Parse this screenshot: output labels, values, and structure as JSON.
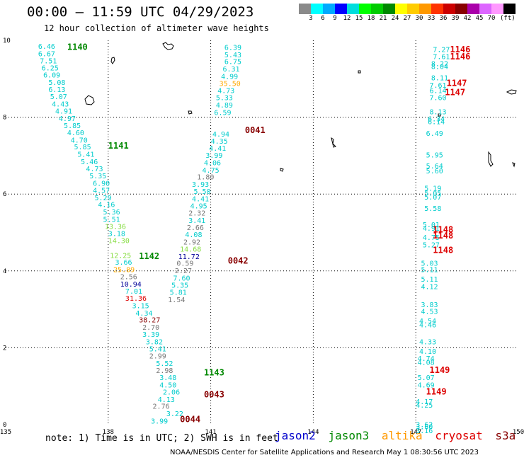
{
  "title": "00:00 – 11:59 UTC 04/29/2023",
  "subtitle": "12 hour collection of altimeter wave heights",
  "colorbar": {
    "colors": [
      "#8a8a8a",
      "#00ffff",
      "#00aaff",
      "#0000ff",
      "#00dddd",
      "#00ff00",
      "#00cc00",
      "#008800",
      "#ffff00",
      "#ffcc00",
      "#ff9900",
      "#ff3300",
      "#cc0000",
      "#880000",
      "#aa00aa",
      "#dd66ff",
      "#ff99ff",
      "#000000"
    ],
    "tick_values": [
      "3",
      "6",
      "9",
      "12",
      "15",
      "18",
      "21",
      "24",
      "27",
      "30",
      "33",
      "36",
      "39",
      "42",
      "45",
      "70"
    ],
    "unit": "(ft)"
  },
  "map": {
    "x_ticks": [
      "135",
      "138",
      "141",
      "144",
      "147",
      "150"
    ],
    "y_ticks": [
      "10",
      "8",
      "6",
      "4",
      "2",
      "0"
    ],
    "lon_range": [
      135,
      150
    ],
    "lat_range": [
      0,
      10
    ],
    "satellites": {
      "jason2": "#0000cc",
      "jason3": "#008800",
      "altika": "#ff9900",
      "cryosat": "#dd0000",
      "s3a": "#880000"
    },
    "labels": [
      {
        "text": "1140",
        "lon": 136.8,
        "lat": 9.75,
        "sat": "jason3"
      },
      {
        "text": "1141",
        "lon": 138.0,
        "lat": 7.18,
        "sat": "jason3"
      },
      {
        "text": "1142",
        "lon": 138.9,
        "lat": 4.31,
        "sat": "jason3"
      },
      {
        "text": "1143",
        "lon": 140.8,
        "lat": 1.28,
        "sat": "jason3"
      },
      {
        "text": "0041",
        "lon": 142.0,
        "lat": 7.59,
        "sat": "s3a"
      },
      {
        "text": "0042",
        "lon": 141.5,
        "lat": 4.19,
        "sat": "s3a"
      },
      {
        "text": "0043",
        "lon": 140.8,
        "lat": 0.71,
        "sat": "s3a"
      },
      {
        "text": "0044",
        "lon": 140.1,
        "lat": 0.06,
        "sat": "s3a"
      },
      {
        "text": "1146",
        "lon": 148.0,
        "lat": 9.69,
        "sat": "cryosat"
      },
      {
        "text": "1146",
        "lon": 148.0,
        "lat": 9.5,
        "sat": "cryosat"
      },
      {
        "text": "1147",
        "lon": 147.9,
        "lat": 8.81,
        "sat": "cryosat"
      },
      {
        "text": "1147",
        "lon": 147.85,
        "lat": 8.57,
        "sat": "cryosat"
      },
      {
        "text": "1148",
        "lon": 147.5,
        "lat": 5.0,
        "sat": "cryosat"
      },
      {
        "text": "1148",
        "lon": 147.5,
        "lat": 4.84,
        "sat": "cryosat"
      },
      {
        "text": "1148",
        "lon": 147.5,
        "lat": 4.47,
        "sat": "cryosat"
      },
      {
        "text": "1149",
        "lon": 147.4,
        "lat": 1.34,
        "sat": "cryosat"
      },
      {
        "text": "1149",
        "lon": 147.3,
        "lat": 0.78,
        "sat": "cryosat"
      }
    ],
    "tracks": [
      {
        "values": [
          [
            "6.46",
            135.95,
            9.78,
            "#00cccc"
          ],
          [
            "6.67",
            135.95,
            9.59,
            "#00cccc"
          ],
          [
            "7.51",
            136.0,
            9.4,
            "#00cccc"
          ],
          [
            "6.25",
            136.05,
            9.22,
            "#00cccc"
          ],
          [
            "6.09",
            136.1,
            9.03,
            "#00cccc"
          ],
          [
            "5.08",
            136.25,
            8.84,
            "#00cccc"
          ],
          [
            "6.13",
            136.25,
            8.66,
            "#00cccc"
          ],
          [
            "5.07",
            136.3,
            8.47,
            "#00cccc"
          ],
          [
            "4.43",
            136.35,
            8.28,
            "#00cccc"
          ],
          [
            "4.91",
            136.45,
            8.09,
            "#00cccc"
          ],
          [
            "4.97",
            136.55,
            7.9,
            "#00cccc"
          ],
          [
            "5.85",
            136.7,
            7.72,
            "#00cccc"
          ],
          [
            "4.60",
            136.8,
            7.53,
            "#00cccc"
          ],
          [
            "4.70",
            136.9,
            7.34,
            "#00cccc"
          ],
          [
            "5.85",
            137.0,
            7.16,
            "#00cccc"
          ],
          [
            "5.41",
            137.1,
            6.97,
            "#00cccc"
          ],
          [
            "5.46",
            137.2,
            6.78,
            "#00cccc"
          ],
          [
            "4.73",
            137.35,
            6.59,
            "#00cccc"
          ],
          [
            "5.35",
            137.45,
            6.41,
            "#00cccc"
          ],
          [
            "6.90",
            137.55,
            6.22,
            "#00cccc"
          ],
          [
            "4.57",
            137.55,
            6.03,
            "#00cccc"
          ],
          [
            "5.29",
            137.6,
            5.84,
            "#00cccc"
          ],
          [
            "4.16",
            137.7,
            5.66,
            "#00cccc"
          ],
          [
            "5.36",
            137.85,
            5.47,
            "#00cccc"
          ],
          [
            "5.51",
            137.85,
            5.28,
            "#00cccc"
          ],
          [
            "13.36",
            137.9,
            5.09,
            "#88dd44"
          ],
          [
            "3.18",
            138.0,
            4.91,
            "#00cccc"
          ],
          [
            "14.30",
            138.0,
            4.72,
            "#88dd44"
          ],
          [
            "12.25",
            138.05,
            4.34,
            "#88dd44"
          ],
          [
            "3.66",
            138.2,
            4.16,
            "#00cccc"
          ],
          [
            "25.89",
            138.15,
            3.97,
            "#ffaa00"
          ],
          [
            "2.56",
            138.35,
            3.78,
            "#777777"
          ],
          [
            "10.94",
            138.35,
            3.59,
            "#000099"
          ],
          [
            "7.01",
            138.5,
            3.41,
            "#00cccc"
          ],
          [
            "31.36",
            138.5,
            3.22,
            "#dd0000"
          ],
          [
            "3.15",
            138.7,
            3.03,
            "#00cccc"
          ],
          [
            "4.34",
            138.8,
            2.84,
            "#00cccc"
          ],
          [
            "38.27",
            138.9,
            2.66,
            "#880000"
          ],
          [
            "2.70",
            139.0,
            2.47,
            "#777777"
          ],
          [
            "3.39",
            139.0,
            2.28,
            "#00cccc"
          ],
          [
            "3.82",
            139.1,
            2.09,
            "#00cccc"
          ],
          [
            "5.41",
            139.2,
            1.91,
            "#00cccc"
          ],
          [
            "2.99",
            139.2,
            1.72,
            "#777777"
          ],
          [
            "5.52",
            139.4,
            1.53,
            "#00cccc"
          ],
          [
            "2.98",
            139.4,
            1.34,
            "#777777"
          ],
          [
            "3.48",
            139.5,
            1.16,
            "#00cccc"
          ],
          [
            "4.50",
            139.5,
            0.97,
            "#00cccc"
          ],
          [
            "2.06",
            139.6,
            0.78,
            "#00cccc"
          ],
          [
            "4.13",
            139.45,
            0.59,
            "#00cccc"
          ],
          [
            "2.76",
            139.3,
            0.41,
            "#777777"
          ],
          [
            "3.22",
            139.7,
            0.22,
            "#00cccc"
          ],
          [
            "3.99",
            139.25,
            0.03,
            "#00cccc"
          ]
        ]
      },
      {
        "values": [
          [
            "6.39",
            141.4,
            9.75,
            "#00cccc"
          ],
          [
            "5.43",
            141.4,
            9.56,
            "#00cccc"
          ],
          [
            "6.75",
            141.4,
            9.38,
            "#00cccc"
          ],
          [
            "6.31",
            141.35,
            9.19,
            "#00cccc"
          ],
          [
            "4.99",
            141.3,
            9.0,
            "#00cccc"
          ],
          [
            "35.50",
            141.25,
            8.81,
            "#ffaa00"
          ],
          [
            "4.73",
            141.2,
            8.63,
            "#00cccc"
          ],
          [
            "5.33",
            141.15,
            8.44,
            "#00cccc"
          ],
          [
            "4.89",
            141.15,
            8.25,
            "#00cccc"
          ],
          [
            "6.59",
            141.1,
            8.06,
            "#00cccc"
          ],
          [
            "4.94",
            141.05,
            7.5,
            "#00cccc"
          ],
          [
            "4.35",
            141.0,
            7.31,
            "#00cccc"
          ],
          [
            "4.41",
            140.95,
            7.13,
            "#00cccc"
          ],
          [
            "3.99",
            140.85,
            6.94,
            "#00cccc"
          ],
          [
            "4.06",
            140.8,
            6.75,
            "#00cccc"
          ],
          [
            "4.75",
            140.75,
            6.56,
            "#00cccc"
          ],
          [
            "1.80",
            140.6,
            6.38,
            "#777777"
          ],
          [
            "3.93",
            140.45,
            6.19,
            "#00cccc"
          ],
          [
            "5.50",
            140.5,
            6.0,
            "#00cccc"
          ],
          [
            "4.41",
            140.45,
            5.81,
            "#00cccc"
          ],
          [
            "4.95",
            140.4,
            5.63,
            "#00cccc"
          ],
          [
            "2.32",
            140.35,
            5.44,
            "#777777"
          ],
          [
            "3.41",
            140.35,
            5.25,
            "#00cccc"
          ],
          [
            "2.66",
            140.3,
            5.06,
            "#777777"
          ],
          [
            "4.08",
            140.25,
            4.88,
            "#00cccc"
          ],
          [
            "2.92",
            140.2,
            4.69,
            "#777777"
          ],
          [
            "14.68",
            140.1,
            4.5,
            "#88dd44"
          ],
          [
            "11.72",
            140.05,
            4.31,
            "#000099"
          ],
          [
            "0.59",
            140.0,
            4.13,
            "#777777"
          ],
          [
            "2.27",
            139.95,
            3.94,
            "#777777"
          ],
          [
            "7.60",
            139.9,
            3.75,
            "#00cccc"
          ],
          [
            "5.35",
            139.85,
            3.56,
            "#00cccc"
          ],
          [
            "5.81",
            139.8,
            3.38,
            "#00cccc"
          ],
          [
            "1.54",
            139.75,
            3.19,
            "#777777"
          ]
        ]
      },
      {
        "values": [
          [
            "7.27",
            147.5,
            9.7,
            "#00cccc"
          ],
          [
            "7.61",
            147.5,
            9.51,
            "#00cccc"
          ],
          [
            "8.22",
            147.45,
            9.33,
            "#00cccc"
          ],
          [
            "8.04",
            147.45,
            9.25,
            "#00cccc"
          ],
          [
            "8.11",
            147.45,
            8.96,
            "#00cccc"
          ],
          [
            "7.61",
            147.4,
            8.77,
            "#00cccc"
          ],
          [
            "6.14",
            147.4,
            8.63,
            "#00cccc"
          ],
          [
            "7.60",
            147.4,
            8.44,
            "#00cccc"
          ],
          [
            "8.13",
            147.4,
            8.08,
            "#00cccc"
          ],
          [
            "6.34",
            147.35,
            7.89,
            "#00cccc"
          ],
          [
            "6.14",
            147.35,
            7.82,
            "#00cccc"
          ],
          [
            "6.49",
            147.3,
            7.51,
            "#00cccc"
          ],
          [
            "5.95",
            147.3,
            6.95,
            "#00cccc"
          ],
          [
            "5.64",
            147.3,
            6.67,
            "#00cccc"
          ],
          [
            "5.60",
            147.3,
            6.54,
            "#00cccc"
          ],
          [
            "5.19",
            147.25,
            6.09,
            "#00cccc"
          ],
          [
            "5.05",
            147.25,
            5.96,
            "#00cccc"
          ],
          [
            "5.07",
            147.25,
            5.86,
            "#00cccc"
          ],
          [
            "5.58",
            147.25,
            5.56,
            "#00cccc"
          ],
          [
            "5.01",
            147.2,
            5.14,
            "#00cccc"
          ],
          [
            "4.91",
            147.2,
            5.05,
            "#00cccc"
          ],
          [
            "4.75",
            147.2,
            4.81,
            "#00cccc"
          ],
          [
            "5.27",
            147.2,
            4.61,
            "#00cccc"
          ],
          [
            "5.03",
            147.15,
            4.13,
            "#00cccc"
          ],
          [
            "5.11",
            147.15,
            3.97,
            "#00cccc"
          ],
          [
            "5.11",
            147.15,
            3.72,
            "#00cccc"
          ],
          [
            "4.12",
            147.15,
            3.53,
            "#00cccc"
          ],
          [
            "3.83",
            147.15,
            3.06,
            "#00cccc"
          ],
          [
            "4.53",
            147.15,
            2.88,
            "#00cccc"
          ],
          [
            "4.54",
            147.1,
            2.63,
            "#00cccc"
          ],
          [
            "4.46",
            147.1,
            2.53,
            "#00cccc"
          ],
          [
            "4.33",
            147.1,
            2.09,
            "#00cccc"
          ],
          [
            "4.10",
            147.1,
            1.84,
            "#00cccc"
          ],
          [
            "4.74",
            147.05,
            1.66,
            "#00cccc"
          ],
          [
            "4.08",
            147.05,
            1.56,
            "#00cccc"
          ],
          [
            "5.07",
            147.05,
            1.16,
            "#00cccc"
          ],
          [
            "4.69",
            147.05,
            0.97,
            "#00cccc"
          ],
          [
            "4.17",
            147.0,
            0.53,
            "#00cccc"
          ],
          [
            "4.25",
            147.0,
            0.44,
            "#00cccc"
          ],
          [
            "3.62",
            147.0,
            -0.06,
            "#00cccc"
          ],
          [
            "3.60",
            147.0,
            -0.12,
            "#00cccc"
          ],
          [
            "3.16",
            147.0,
            -0.22,
            "#00cccc"
          ]
        ]
      }
    ]
  },
  "note": "note:  1) Time is in UTC;  2) SWH is in feet",
  "legend": {
    "jason2": "jason2",
    "jason3": "jason3",
    "altika": "altika",
    "cryosat": "cryosat",
    "s3a": "s3a"
  },
  "footer": "NOAA/NESDIS Center for Satellite Applications and Research    May  1 08:30:56 UTC 2023"
}
